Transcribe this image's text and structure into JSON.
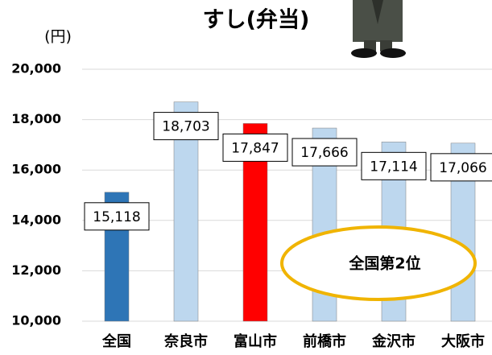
{
  "chart_data": {
    "type": "bar",
    "title": "すし(弁当)",
    "y_label": "(円)",
    "categories": [
      "全国",
      "奈良市",
      "富山市",
      "前橋市",
      "金沢市",
      "大阪市"
    ],
    "values": [
      15118,
      18703,
      17847,
      17666,
      17114,
      17066
    ],
    "value_labels": [
      "15,118",
      "18,703",
      "17,847",
      "17,666",
      "17,114",
      "17,066"
    ],
    "colors": [
      "#2e75b6",
      "#bdd7ee",
      "#ff0000",
      "#bdd7ee",
      "#bdd7ee",
      "#bdd7ee"
    ],
    "ylim": [
      10000,
      20000
    ],
    "yticks": [
      {
        "value": 10000,
        "label": "10,000"
      },
      {
        "value": 12000,
        "label": "12,000"
      },
      {
        "value": 14000,
        "label": "14,000"
      },
      {
        "value": 16000,
        "label": "16,000"
      },
      {
        "value": 18000,
        "label": "18,000"
      },
      {
        "value": 20000,
        "label": "20,000"
      }
    ],
    "grid": true,
    "annotation": "全国第2位"
  }
}
